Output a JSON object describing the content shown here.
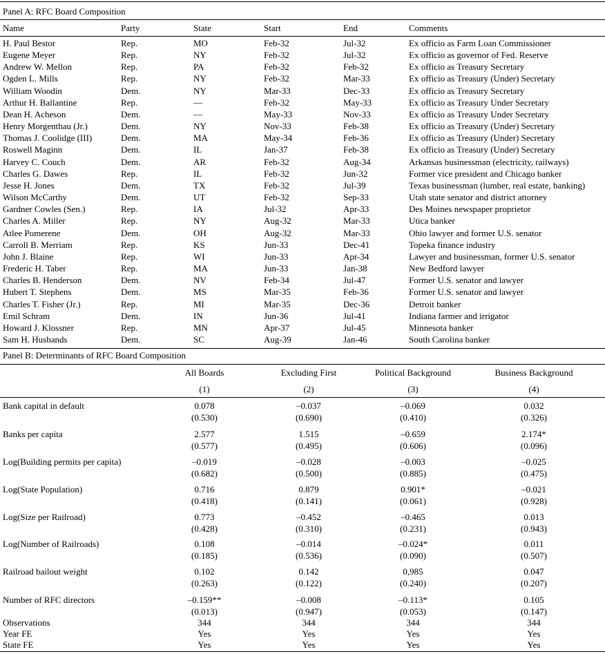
{
  "panel_a": {
    "title": "Panel A: RFC Board Composition",
    "header": [
      "Name",
      "Party",
      "State",
      "Start",
      "End",
      "Comments"
    ],
    "rows": [
      [
        "H. Paul Bestor",
        "Rep.",
        "MO",
        "Feb-32",
        "Jul-32",
        "Ex officio as Farm Loan Commissioner"
      ],
      [
        "Eugene Meyer",
        "Rep.",
        "NY",
        "Feb-32",
        "Jul-32",
        "Ex officio as governor of Fed. Reserve"
      ],
      [
        "Andrew W. Mellon",
        "Rep.",
        "PA",
        "Feb-32",
        "Feb-32",
        "Ex officio as Treasury Secretary"
      ],
      [
        "Ogden L. Mills",
        "Rep.",
        "NY",
        "Feb-32",
        "Mar-33",
        "Ex officio as Treasury (Under) Secretary"
      ],
      [
        "William Woodin",
        "Dem.",
        "NY",
        "Mar-33",
        "Dec-33",
        "Ex officio as Treasury Secretary"
      ],
      [
        "Arthur H. Ballantine",
        "Rep.",
        "—",
        "Feb-32",
        "May-33",
        "Ex officio as Treasury Under Secretary"
      ],
      [
        "Dean H. Acheson",
        "Dem.",
        "—",
        "May-33",
        "Nov-33",
        "Ex officio as Treasury Under Secretary"
      ],
      [
        "Henry Morgenthau (Jr.)",
        "Dem.",
        "NY",
        "Nov-33",
        "Feb-38",
        "Ex officio as Treasury (Under) Secretary"
      ],
      [
        "Thomas J. Coolidge (III)",
        "Dem.",
        "MA",
        "May-34",
        "Feb-36",
        "Ex officio as Treasury (Under) Secretary"
      ],
      [
        "Roswell Maginn",
        "Dem.",
        "IL",
        "Jan-37",
        "Feb-38",
        "Ex officio as Treasury (Under) Secretary"
      ],
      [
        "Harvey C. Couch",
        "Dem.",
        "AR",
        "Feb-32",
        "Aug-34",
        "Arkansas businessman (electricity, railways)"
      ],
      [
        "Charles G. Dawes",
        "Rep.",
        "IL",
        "Feb-32",
        "Jun-32",
        "Former vice president and Chicago banker"
      ],
      [
        "Jesse H. Jones",
        "Dem.",
        "TX",
        "Feb-32",
        "Jul-39",
        "Texas businessman (lumber, real estate, banking)"
      ],
      [
        "Wilson McCarthy",
        "Dem.",
        "UT",
        "Feb-32",
        "Sep-33",
        "Utah state senator and district attorney"
      ],
      [
        "Gardner Cowles (Sen.)",
        "Rep.",
        "IA",
        "Jul-32",
        "Apr-33",
        "Des Moines newspaper proprietor"
      ],
      [
        "Charles A. Miller",
        "Rep.",
        "NY",
        "Aug-32",
        "Mar-33",
        "Utica banker"
      ],
      [
        "Atlee Pomerene",
        "Dem.",
        "OH",
        "Aug-32",
        "Mar-33",
        "Ohio lawyer and former U.S. senator"
      ],
      [
        "Carroll B. Merriam",
        "Rep.",
        "KS",
        "Jun-33",
        "Dec-41",
        "Topeka finance industry"
      ],
      [
        "John J. Blaine",
        "Rep.",
        "WI",
        "Jun-33",
        "Apr-34",
        "Lawyer and businessman, former U.S. senator"
      ],
      [
        "Frederic H. Taber",
        "Rep.",
        "MA",
        "Jun-33",
        "Jan-38",
        "New Bedford lawyer"
      ],
      [
        "Charles B. Henderson",
        "Dem.",
        "NV",
        "Feb-34",
        "Jul-47",
        "Former U.S. senator and lawyer"
      ],
      [
        "Hubert T. Stephens",
        "Dem.",
        "MS",
        "Mar-35",
        "Feb-36",
        "Former U.S. senator and lawyer"
      ],
      [
        "Charles T. Fisher (Jr.)",
        "Rep.",
        "MI",
        "Mar-35",
        "Dec-36",
        "Detroit banker"
      ],
      [
        "Emil Schram",
        "Dem.",
        "IN",
        "Jun-36",
        "Jul-41",
        "Indiana farmer and irrigator"
      ],
      [
        "Howard J. Klossner",
        "Rep.",
        "MN",
        "Apr-37",
        "Jul-45",
        "Minnesota banker"
      ],
      [
        "Sam H. Husbands",
        "Dem.",
        "SC",
        "Aug-39",
        "Jan-46",
        "South Carolina banker"
      ]
    ]
  },
  "panel_b": {
    "title": "Panel B: Determinants of RFC Board Composition",
    "columns": [
      "All Boards",
      "Excluding First",
      "Political Background",
      "Business Background"
    ],
    "column_numbers": [
      "(1)",
      "(2)",
      "(3)",
      "(4)"
    ],
    "rows": [
      {
        "label": "Bank capital in default",
        "coef": [
          "0.078",
          "–0.037",
          "–0.069",
          "0.032"
        ],
        "p": [
          "(0.530)",
          "(0.690)",
          "(0.410)",
          "(0.326)"
        ]
      },
      {
        "label": "Banks per capita",
        "coef": [
          "2.577",
          "1.515",
          "–0.659",
          "2.174*"
        ],
        "p": [
          "(0.577)",
          "(0.495)",
          "(0.606)",
          "(0.096)"
        ]
      },
      {
        "label": "Log(Building permits per capita)",
        "coef": [
          "–0.019",
          "–0.028",
          "–0.003",
          "–0.025"
        ],
        "p": [
          "(0.682)",
          "(0.500)",
          "(0.885)",
          "(0.475)"
        ]
      },
      {
        "label": "Log(State Population)",
        "coef": [
          "0.716",
          "0.879",
          "0.901*",
          "–0.021"
        ],
        "p": [
          "(0.418)",
          "(0.141)",
          "(0.061)",
          "(0.928)"
        ]
      },
      {
        "label": "Log(Size per Railroad)",
        "coef": [
          "0.773",
          "–0.452",
          "–0.465",
          "0.013"
        ],
        "p": [
          "(0.428)",
          "(0.310)",
          "(0.231)",
          "(0.943)"
        ]
      },
      {
        "label": "Log(Number of Railroads)",
        "coef": [
          "0.108",
          "–0.014",
          "–0.024*",
          "0.011"
        ],
        "p": [
          "(0.185)",
          "(0.536)",
          "(0.090)",
          "(0.507)"
        ]
      },
      {
        "label": "Railroad bailout weight",
        "coef": [
          "0.102",
          "0.142",
          "0,985",
          "0.047"
        ],
        "p": [
          "(0.263)",
          "(0.122)",
          "(0.240)",
          "(0.207)"
        ]
      },
      {
        "label": "Number of RFC directors",
        "coef": [
          "–0.159**",
          "–0.008",
          "–0.113*",
          "0.105"
        ],
        "p": [
          "(0.013)",
          "(0.947)",
          "(0.053)",
          "(0.147)"
        ]
      }
    ],
    "footer": [
      {
        "label": "Observations",
        "values": [
          "344",
          "344",
          "344",
          "344"
        ]
      },
      {
        "label": "Year FE",
        "values": [
          "Yes",
          "Yes",
          "Yes",
          "Yes"
        ]
      },
      {
        "label": "State FE",
        "values": [
          "Yes",
          "Yes",
          "Yes",
          "Yes"
        ]
      }
    ]
  }
}
